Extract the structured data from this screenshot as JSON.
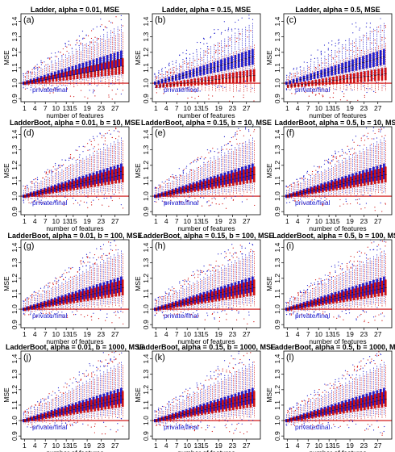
{
  "figure": {
    "colors": {
      "private": "#1a1acc",
      "final": "#d01010",
      "ref_line": "#cc0000",
      "frame": "#000000"
    },
    "private_label": "private",
    "final_label": "final",
    "legend_sep": "/"
  },
  "chart_data": [
    {
      "type": "box",
      "panel_label": "(a)",
      "title": "Ladder, alpha = 0.01, MSE",
      "xlabel": "number of features",
      "ylabel": "MSE",
      "x_ticks": [
        1,
        4,
        7,
        10,
        13,
        15,
        19,
        23,
        27
      ],
      "y_ticks": [
        "0.9",
        "1.0",
        "1.1",
        "1.2",
        "1.3",
        "1.4"
      ],
      "ylim": [
        0.88,
        1.45
      ],
      "xlim": [
        0,
        31
      ],
      "reference_line": 1.0,
      "series": [
        {
          "name": "private",
          "median_start": 1.0,
          "median_end": 1.16,
          "iqr_start": 0.01,
          "iqr_end": 0.05,
          "whisker_start": 0.04,
          "whisker_end": 0.22
        },
        {
          "name": "final",
          "median_start": 1.0,
          "median_end": 1.11,
          "iqr_start": 0.01,
          "iqr_end": 0.05,
          "whisker_start": 0.04,
          "whisker_end": 0.22
        }
      ]
    },
    {
      "type": "box",
      "panel_label": "(b)",
      "title": "Ladder, alpha = 0.15, MSE",
      "xlabel": "number of features",
      "ylabel": "MSE",
      "x_ticks": [
        1,
        4,
        7,
        10,
        13,
        15,
        19,
        23,
        27
      ],
      "y_ticks": [
        "0.9",
        "1.0",
        "1.1",
        "1.2",
        "1.3",
        "1.4"
      ],
      "ylim": [
        0.88,
        1.45
      ],
      "xlim": [
        0,
        31
      ],
      "reference_line": 1.0,
      "series": [
        {
          "name": "private",
          "median_start": 1.0,
          "median_end": 1.17,
          "iqr_start": 0.01,
          "iqr_end": 0.05,
          "whisker_start": 0.04,
          "whisker_end": 0.22
        },
        {
          "name": "final",
          "median_start": 0.98,
          "median_end": 1.05,
          "iqr_start": 0.01,
          "iqr_end": 0.04,
          "whisker_start": 0.04,
          "whisker_end": 0.2
        }
      ]
    },
    {
      "type": "box",
      "panel_label": "(c)",
      "title": "Ladder, alpha = 0.5, MSE",
      "xlabel": "number of features",
      "ylabel": "MSE",
      "x_ticks": [
        1,
        4,
        7,
        10,
        13,
        15,
        19,
        23,
        27
      ],
      "y_ticks": [
        "0.9",
        "1.0",
        "1.1",
        "1.2",
        "1.3",
        "1.4"
      ],
      "ylim": [
        0.88,
        1.45
      ],
      "xlim": [
        0,
        31
      ],
      "reference_line": 1.0,
      "series": [
        {
          "name": "private",
          "median_start": 1.0,
          "median_end": 1.17,
          "iqr_start": 0.01,
          "iqr_end": 0.05,
          "whisker_start": 0.04,
          "whisker_end": 0.22
        },
        {
          "name": "final",
          "median_start": 0.98,
          "median_end": 1.06,
          "iqr_start": 0.01,
          "iqr_end": 0.04,
          "whisker_start": 0.04,
          "whisker_end": 0.2
        }
      ]
    },
    {
      "type": "box",
      "panel_label": "(d)",
      "title": "LadderBoot, alpha = 0.01, b = 10, MSE",
      "xlabel": "number of features",
      "ylabel": "MSE",
      "x_ticks": [
        1,
        4,
        7,
        10,
        13,
        15,
        19,
        23,
        27
      ],
      "y_ticks": [
        "0.9",
        "1.0",
        "1.1",
        "1.2",
        "1.3",
        "1.4"
      ],
      "ylim": [
        0.88,
        1.45
      ],
      "xlim": [
        0,
        31
      ],
      "reference_line": 1.0,
      "series": [
        {
          "name": "private",
          "median_start": 1.0,
          "median_end": 1.16,
          "iqr_start": 0.01,
          "iqr_end": 0.05,
          "whisker_start": 0.04,
          "whisker_end": 0.22
        },
        {
          "name": "final",
          "median_start": 1.0,
          "median_end": 1.14,
          "iqr_start": 0.01,
          "iqr_end": 0.05,
          "whisker_start": 0.04,
          "whisker_end": 0.22
        }
      ]
    },
    {
      "type": "box",
      "panel_label": "(e)",
      "title": "LadderBoot, alpha = 0.15, b = 10, MSE",
      "xlabel": "number of features",
      "ylabel": "MSE",
      "x_ticks": [
        1,
        4,
        7,
        10,
        13,
        15,
        19,
        23,
        27
      ],
      "y_ticks": [
        "0.9",
        "1.0",
        "1.1",
        "1.2",
        "1.3",
        "1.4"
      ],
      "ylim": [
        0.88,
        1.45
      ],
      "xlim": [
        0,
        31
      ],
      "reference_line": 1.0,
      "series": [
        {
          "name": "private",
          "median_start": 1.0,
          "median_end": 1.16,
          "iqr_start": 0.01,
          "iqr_end": 0.05,
          "whisker_start": 0.04,
          "whisker_end": 0.22
        },
        {
          "name": "final",
          "median_start": 1.0,
          "median_end": 1.14,
          "iqr_start": 0.01,
          "iqr_end": 0.05,
          "whisker_start": 0.04,
          "whisker_end": 0.22
        }
      ]
    },
    {
      "type": "box",
      "panel_label": "(f)",
      "title": "LadderBoot, alpha = 0.5, b = 10, MSE",
      "xlabel": "number of features",
      "ylabel": "MSE",
      "x_ticks": [
        1,
        4,
        7,
        10,
        13,
        15,
        19,
        23,
        27
      ],
      "y_ticks": [
        "0.9",
        "1.0",
        "1.1",
        "1.2",
        "1.3",
        "1.4"
      ],
      "ylim": [
        0.88,
        1.45
      ],
      "xlim": [
        0,
        31
      ],
      "reference_line": 1.0,
      "series": [
        {
          "name": "private",
          "median_start": 1.0,
          "median_end": 1.16,
          "iqr_start": 0.01,
          "iqr_end": 0.05,
          "whisker_start": 0.04,
          "whisker_end": 0.22
        },
        {
          "name": "final",
          "median_start": 1.0,
          "median_end": 1.14,
          "iqr_start": 0.01,
          "iqr_end": 0.05,
          "whisker_start": 0.04,
          "whisker_end": 0.22
        }
      ]
    },
    {
      "type": "box",
      "panel_label": "(g)",
      "title": "LadderBoot, alpha = 0.01, b = 100, MSE",
      "xlabel": "number of features",
      "ylabel": "MSE",
      "x_ticks": [
        1,
        4,
        7,
        10,
        13,
        15,
        19,
        23,
        27
      ],
      "y_ticks": [
        "0.9",
        "1.0",
        "1.1",
        "1.2",
        "1.3",
        "1.4"
      ],
      "ylim": [
        0.88,
        1.45
      ],
      "xlim": [
        0,
        31
      ],
      "reference_line": 1.0,
      "series": [
        {
          "name": "private",
          "median_start": 1.0,
          "median_end": 1.16,
          "iqr_start": 0.01,
          "iqr_end": 0.05,
          "whisker_start": 0.04,
          "whisker_end": 0.22
        },
        {
          "name": "final",
          "median_start": 1.0,
          "median_end": 1.14,
          "iqr_start": 0.01,
          "iqr_end": 0.05,
          "whisker_start": 0.04,
          "whisker_end": 0.22
        }
      ]
    },
    {
      "type": "box",
      "panel_label": "(h)",
      "title": "LadderBoot, alpha = 0.15, b = 100, MSE",
      "xlabel": "number of features",
      "ylabel": "MSE",
      "x_ticks": [
        1,
        4,
        7,
        10,
        13,
        15,
        19,
        23,
        27
      ],
      "y_ticks": [
        "0.9",
        "1.0",
        "1.1",
        "1.2",
        "1.3",
        "1.4"
      ],
      "ylim": [
        0.88,
        1.45
      ],
      "xlim": [
        0,
        31
      ],
      "reference_line": 1.0,
      "series": [
        {
          "name": "private",
          "median_start": 1.0,
          "median_end": 1.16,
          "iqr_start": 0.01,
          "iqr_end": 0.05,
          "whisker_start": 0.04,
          "whisker_end": 0.22
        },
        {
          "name": "final",
          "median_start": 1.0,
          "median_end": 1.14,
          "iqr_start": 0.01,
          "iqr_end": 0.05,
          "whisker_start": 0.04,
          "whisker_end": 0.22
        }
      ]
    },
    {
      "type": "box",
      "panel_label": "(i)",
      "title": "LadderBoot, alpha = 0.5, b = 100, MSE",
      "xlabel": "number of features",
      "ylabel": "MSE",
      "x_ticks": [
        1,
        4,
        7,
        10,
        13,
        15,
        19,
        23,
        27
      ],
      "y_ticks": [
        "0.9",
        "1.0",
        "1.1",
        "1.2",
        "1.3",
        "1.4"
      ],
      "ylim": [
        0.88,
        1.45
      ],
      "xlim": [
        0,
        31
      ],
      "reference_line": 1.0,
      "series": [
        {
          "name": "private",
          "median_start": 1.0,
          "median_end": 1.16,
          "iqr_start": 0.01,
          "iqr_end": 0.05,
          "whisker_start": 0.04,
          "whisker_end": 0.22
        },
        {
          "name": "final",
          "median_start": 1.0,
          "median_end": 1.14,
          "iqr_start": 0.01,
          "iqr_end": 0.05,
          "whisker_start": 0.04,
          "whisker_end": 0.22
        }
      ]
    },
    {
      "type": "box",
      "panel_label": "(j)",
      "title": "LadderBoot, alpha = 0.01, b = 1000, MSE",
      "xlabel": "number of features",
      "ylabel": "MSE",
      "x_ticks": [
        1,
        4,
        7,
        10,
        13,
        15,
        19,
        23,
        27
      ],
      "y_ticks": [
        "0.9",
        "1.0",
        "1.1",
        "1.2",
        "1.3",
        "1.4"
      ],
      "ylim": [
        0.88,
        1.45
      ],
      "xlim": [
        0,
        31
      ],
      "reference_line": 1.0,
      "series": [
        {
          "name": "private",
          "median_start": 1.0,
          "median_end": 1.16,
          "iqr_start": 0.01,
          "iqr_end": 0.05,
          "whisker_start": 0.04,
          "whisker_end": 0.22
        },
        {
          "name": "final",
          "median_start": 1.0,
          "median_end": 1.14,
          "iqr_start": 0.01,
          "iqr_end": 0.05,
          "whisker_start": 0.04,
          "whisker_end": 0.22
        }
      ]
    },
    {
      "type": "box",
      "panel_label": "(k)",
      "title": "LadderBoot, alpha = 0.15, b = 1000, MSE",
      "xlabel": "number of features",
      "ylabel": "MSE",
      "x_ticks": [
        1,
        4,
        7,
        10,
        13,
        15,
        19,
        23,
        27
      ],
      "y_ticks": [
        "0.9",
        "1.0",
        "1.1",
        "1.2",
        "1.3",
        "1.4"
      ],
      "ylim": [
        0.88,
        1.45
      ],
      "xlim": [
        0,
        31
      ],
      "reference_line": 1.0,
      "series": [
        {
          "name": "private",
          "median_start": 1.0,
          "median_end": 1.16,
          "iqr_start": 0.01,
          "iqr_end": 0.05,
          "whisker_start": 0.04,
          "whisker_end": 0.22
        },
        {
          "name": "final",
          "median_start": 1.0,
          "median_end": 1.14,
          "iqr_start": 0.01,
          "iqr_end": 0.05,
          "whisker_start": 0.04,
          "whisker_end": 0.22
        }
      ]
    },
    {
      "type": "box",
      "panel_label": "(l)",
      "title": "LadderBoot, alpha = 0.5, b = 1000, MSE",
      "xlabel": "number of features",
      "ylabel": "MSE",
      "x_ticks": [
        1,
        4,
        7,
        10,
        13,
        15,
        19,
        23,
        27
      ],
      "y_ticks": [
        "0.9",
        "1.0",
        "1.1",
        "1.2",
        "1.3",
        "1.4"
      ],
      "ylim": [
        0.88,
        1.45
      ],
      "xlim": [
        0,
        31
      ],
      "reference_line": 1.0,
      "series": [
        {
          "name": "private",
          "median_start": 1.0,
          "median_end": 1.16,
          "iqr_start": 0.01,
          "iqr_end": 0.05,
          "whisker_start": 0.04,
          "whisker_end": 0.22
        },
        {
          "name": "final",
          "median_start": 1.0,
          "median_end": 1.14,
          "iqr_start": 0.01,
          "iqr_end": 0.05,
          "whisker_start": 0.04,
          "whisker_end": 0.22
        }
      ]
    }
  ]
}
